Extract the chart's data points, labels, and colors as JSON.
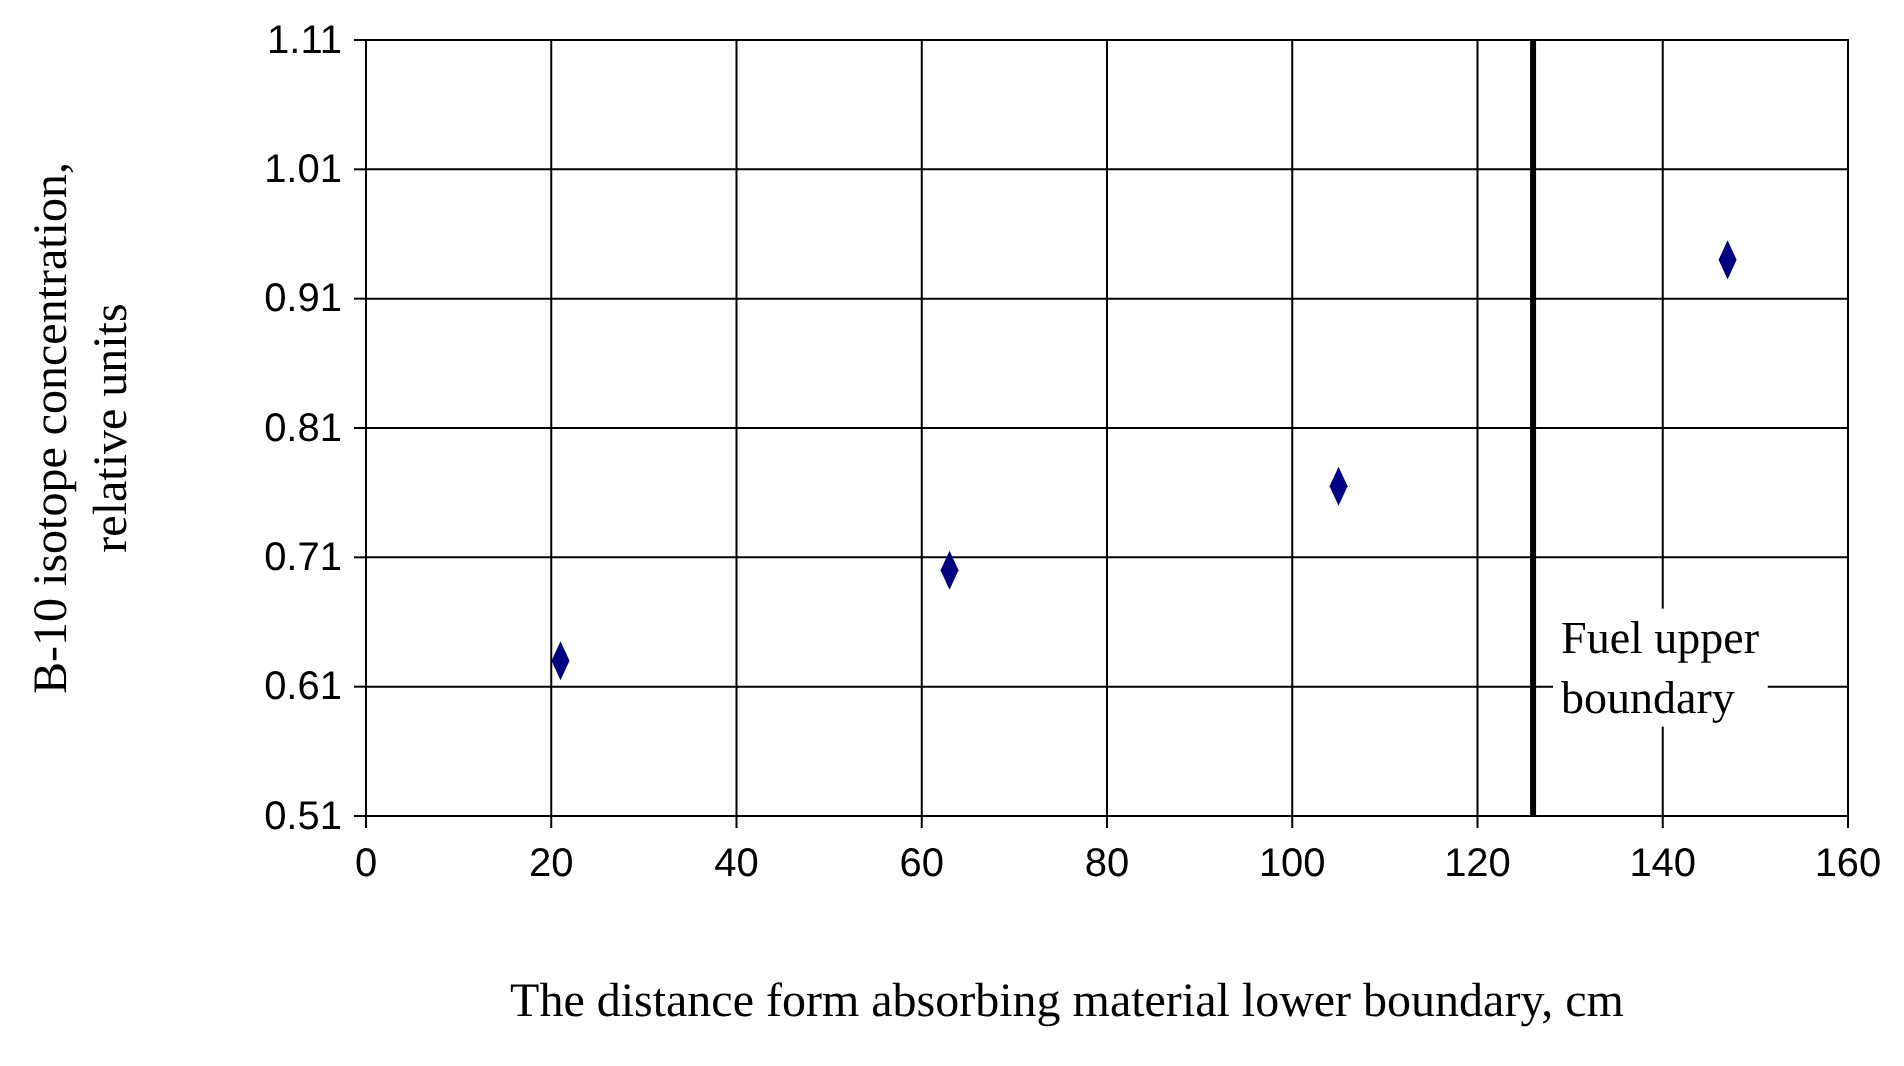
{
  "chart_data": {
    "type": "scatter",
    "xlabel": "The distance form absorbing material lower boundary, cm",
    "ylabel": "B-10 isotope concentration, relative units",
    "x": [
      21,
      63,
      105,
      147
    ],
    "values": [
      0.63,
      0.7,
      0.765,
      0.94
    ],
    "color": "#000080",
    "marker": "diamond",
    "grid": true,
    "xlim": [
      0,
      160
    ],
    "xticks": [
      0,
      20,
      40,
      60,
      80,
      100,
      120,
      140,
      160
    ],
    "ylim": [
      0.51,
      1.11
    ],
    "yticks": [
      0.51,
      0.61,
      0.71,
      0.81,
      0.91,
      1.01,
      1.11
    ],
    "ref_lines": [
      {
        "axis": "x",
        "value": 126,
        "label": "Fuel upper boundary",
        "color": "#000000"
      }
    ]
  }
}
